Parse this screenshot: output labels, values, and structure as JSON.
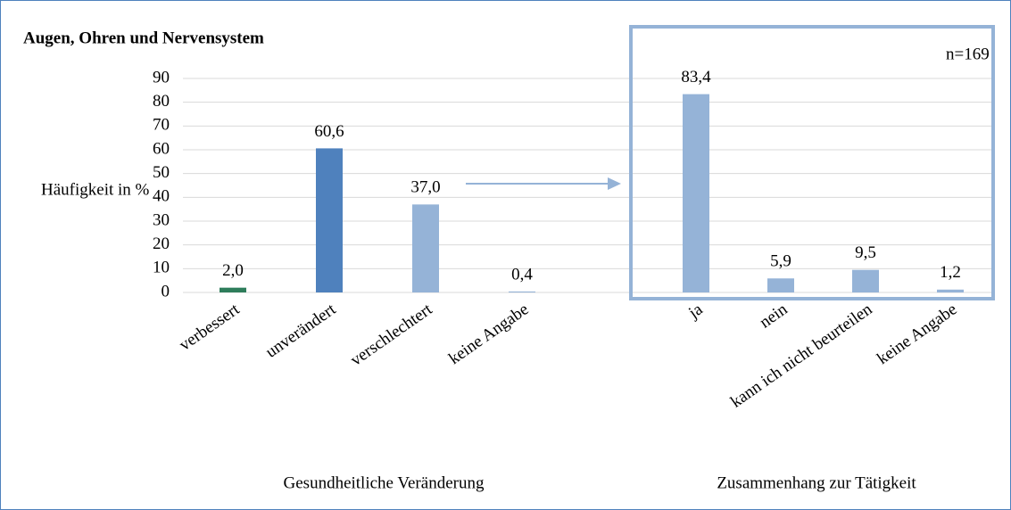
{
  "chart_data": {
    "type": "bar",
    "title": "Augen, Ohren und Nervensystem",
    "ylabel": "Häufigkeit in %",
    "annotation": "n=169",
    "ylim": [
      0,
      90
    ],
    "yticks": [
      0,
      10,
      20,
      30,
      40,
      50,
      60,
      70,
      80,
      90
    ],
    "grid": true,
    "groups": [
      {
        "label": "Gesundheitliche Veränderung",
        "categories": [
          "verbessert",
          "unverändert",
          "verschlechtert",
          "keine Angabe"
        ],
        "values": [
          2.0,
          60.6,
          37.0,
          0.4
        ],
        "value_labels": [
          "2,0",
          "60,6",
          "37,0",
          "0,4"
        ],
        "colors": [
          "#2e7d5b",
          "#4f81bd",
          "#95b3d7",
          "#95b3d7"
        ]
      },
      {
        "label": "Zusammenhang zur Tätigkeit",
        "categories": [
          "ja",
          "nein",
          "kann ich nicht beurteilen",
          "keine Angabe"
        ],
        "values": [
          83.4,
          5.9,
          9.5,
          1.2
        ],
        "value_labels": [
          "83,4",
          "5,9",
          "9,5",
          "1,2"
        ],
        "colors": [
          "#95b3d7",
          "#95b3d7",
          "#95b3d7",
          "#95b3d7"
        ]
      }
    ]
  }
}
